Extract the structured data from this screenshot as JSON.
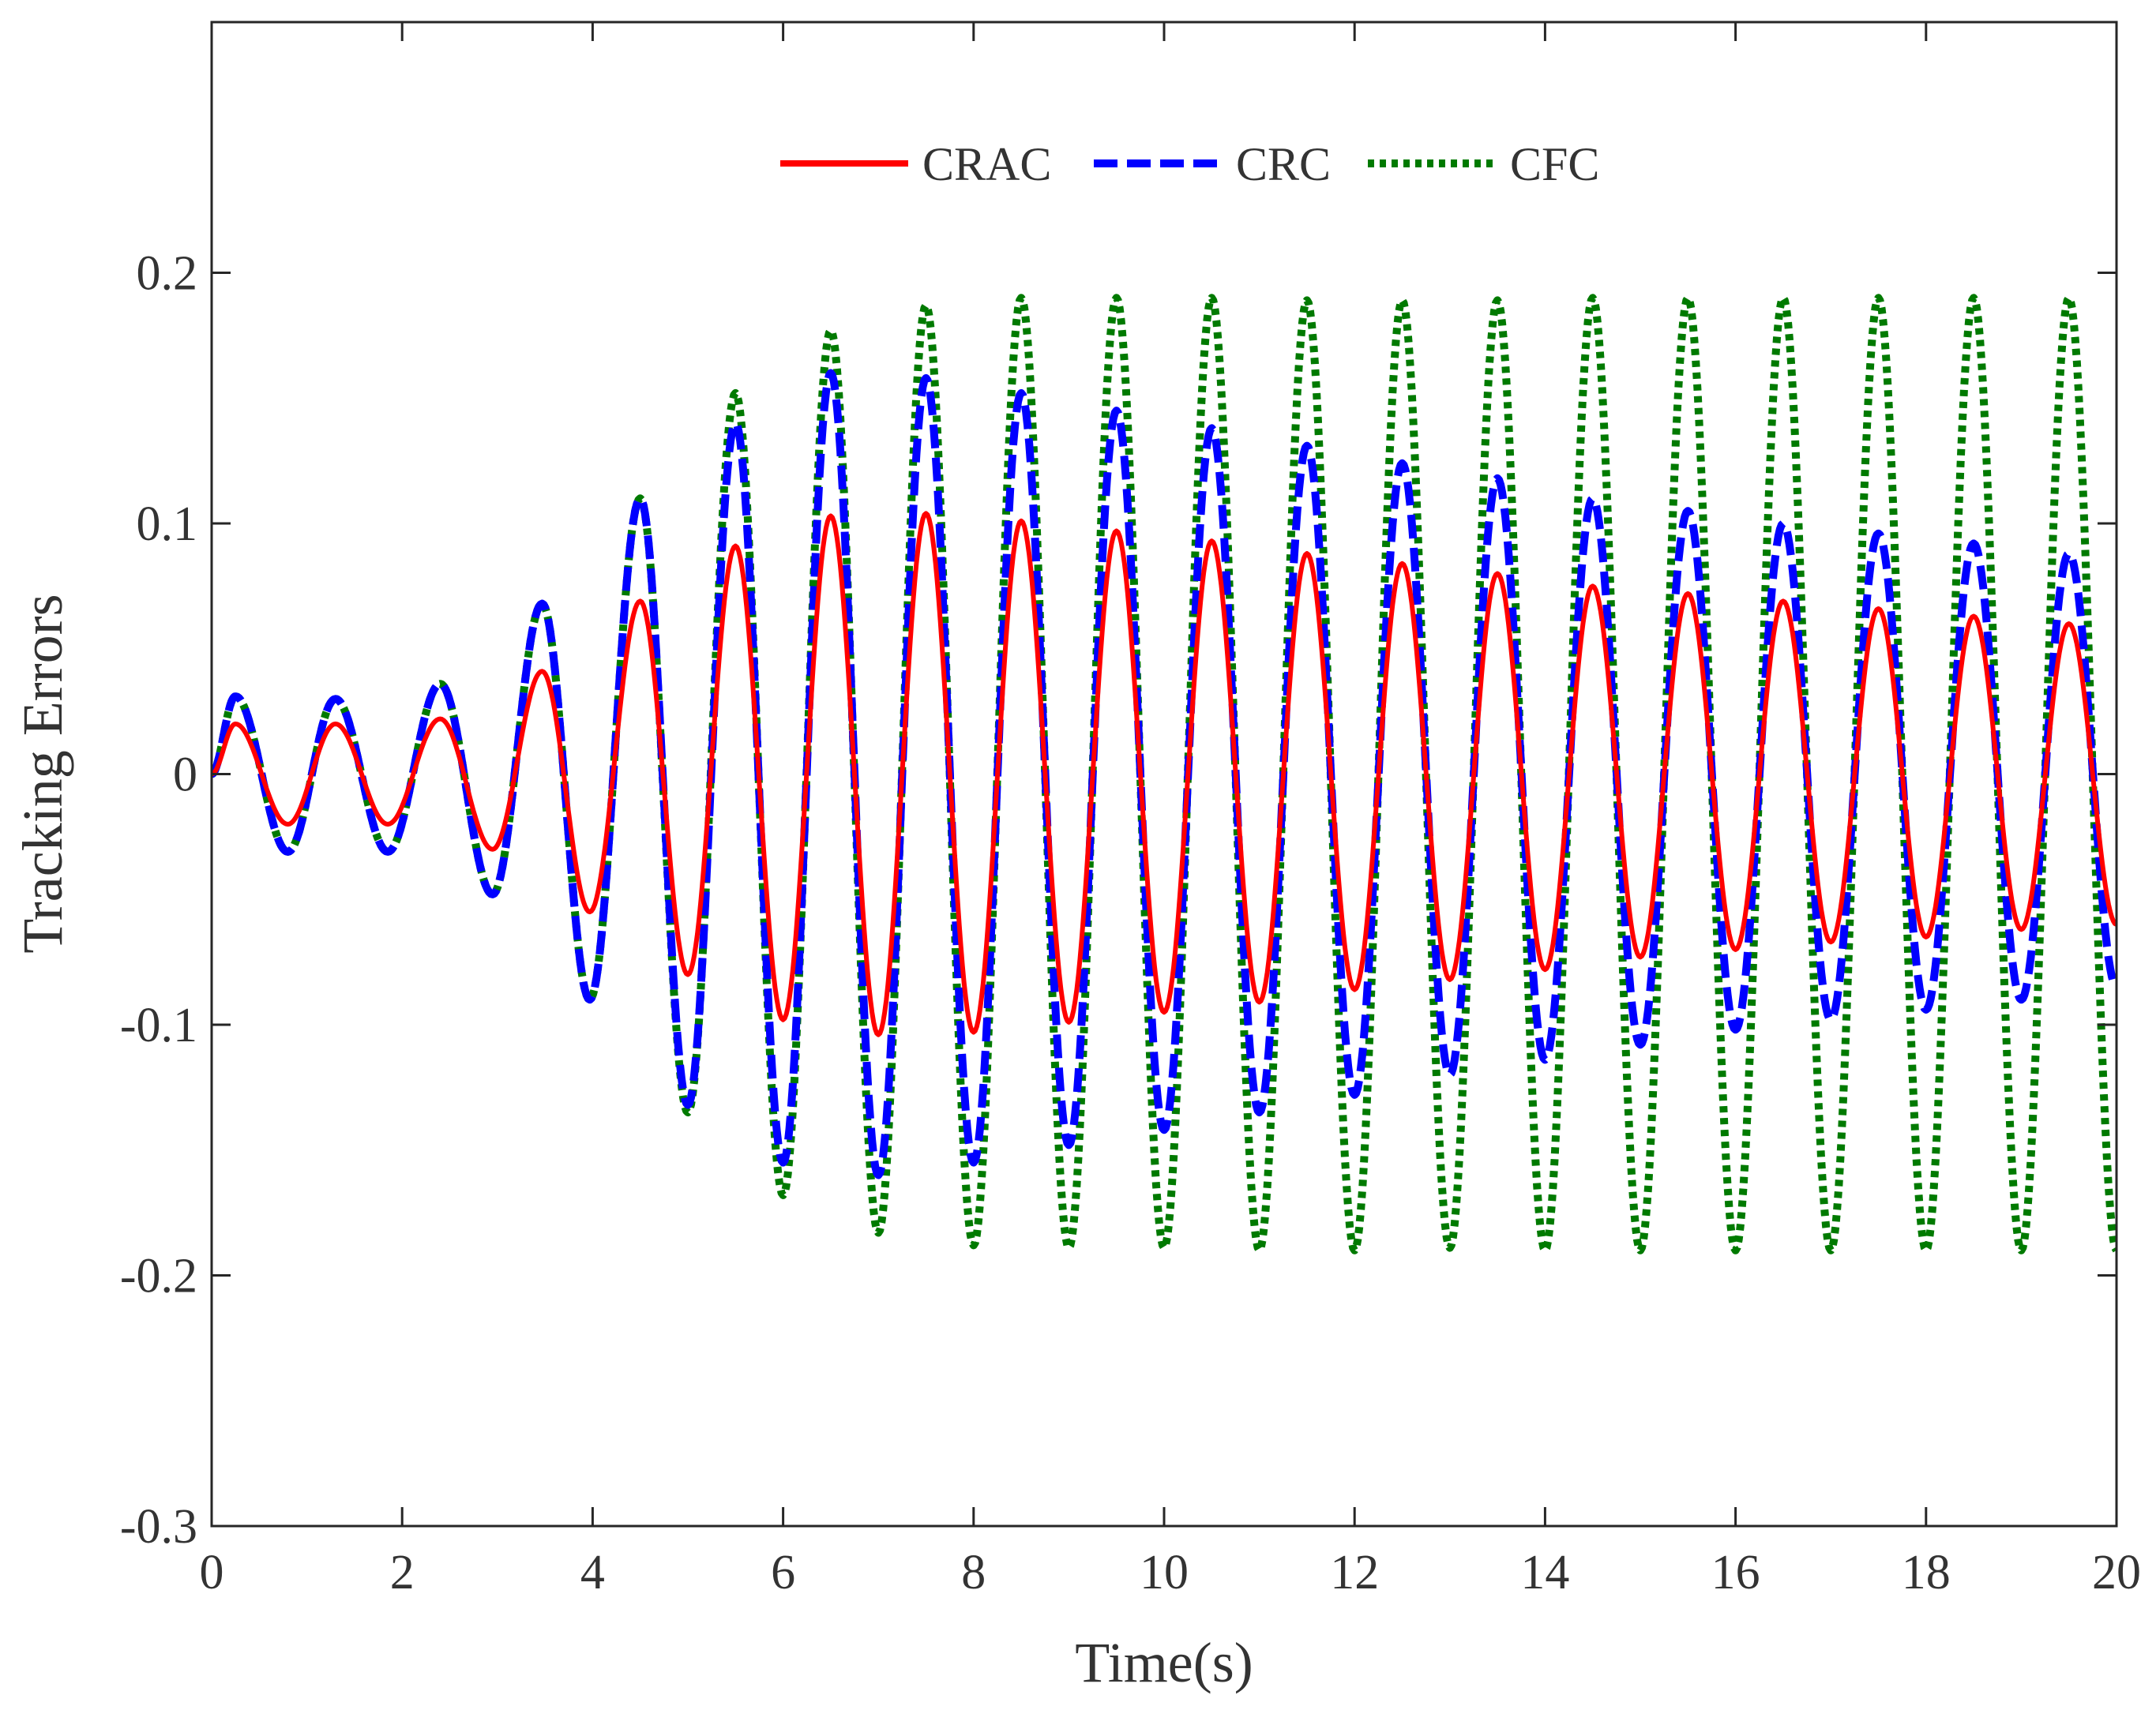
{
  "chart_data": {
    "type": "line",
    "title": "",
    "xlabel": "Time(s)",
    "ylabel": "Tracking Errors",
    "xlim": [
      0,
      20
    ],
    "ylim": [
      -0.3,
      0.3
    ],
    "grid": false,
    "legend_position": "top-center",
    "x_ticks": [
      0,
      2,
      4,
      6,
      8,
      10,
      12,
      14,
      16,
      18,
      20
    ],
    "x_tick_labels": [
      "0",
      "2",
      "4",
      "6",
      "8",
      "10",
      "12",
      "14",
      "16",
      "18",
      "20"
    ],
    "y_ticks": [
      -0.3,
      -0.2,
      -0.1,
      0,
      0.1,
      0.2
    ],
    "y_tick_labels": [
      "-0.3",
      "-0.2",
      "-0.1",
      "0",
      "0.1",
      "0.2"
    ],
    "series": [
      {
        "name": "CRAC",
        "color": "#ff0000",
        "style": "solid",
        "peak_times": [
          0.25,
          0.8,
          1.3,
          1.85,
          2.4,
          2.95,
          3.47,
          3.97,
          4.5,
          5.0,
          5.5,
          6.0,
          6.5,
          7.0,
          7.5,
          8.0,
          8.5,
          9.0,
          9.5,
          10.0,
          10.5,
          11.0,
          11.5,
          12.0,
          12.5,
          13.0,
          13.5,
          14.0,
          14.5,
          15.0,
          15.5,
          16.0,
          16.5,
          17.0,
          17.5,
          18.0,
          18.5,
          19.0,
          19.5,
          20.0
        ],
        "peak_values": [
          0.02,
          -0.02,
          0.02,
          -0.02,
          0.022,
          -0.03,
          0.041,
          -0.055,
          0.069,
          -0.08,
          0.091,
          -0.098,
          0.103,
          -0.104,
          0.104,
          -0.103,
          0.101,
          -0.099,
          0.097,
          -0.095,
          0.093,
          -0.091,
          0.088,
          -0.086,
          0.084,
          -0.082,
          0.08,
          -0.078,
          0.075,
          -0.073,
          0.072,
          -0.07,
          0.069,
          -0.067,
          0.066,
          -0.065,
          0.063,
          -0.062,
          0.06,
          -0.06
        ]
      },
      {
        "name": "CRC",
        "color": "#0000ff",
        "style": "dashed",
        "peak_times": [
          0.25,
          0.8,
          1.3,
          1.85,
          2.4,
          2.95,
          3.47,
          3.97,
          4.5,
          5.0,
          5.5,
          6.0,
          6.5,
          7.0,
          7.5,
          8.0,
          8.5,
          9.0,
          9.5,
          10.0,
          10.5,
          11.0,
          11.5,
          12.0,
          12.5,
          13.0,
          13.5,
          14.0,
          14.5,
          15.0,
          15.5,
          16.0,
          16.5,
          17.0,
          17.5,
          18.0,
          18.5,
          19.0,
          19.5,
          20.0
        ],
        "peak_values": [
          0.031,
          -0.031,
          0.03,
          -0.031,
          0.036,
          -0.048,
          0.068,
          -0.09,
          0.11,
          -0.132,
          0.14,
          -0.155,
          0.16,
          -0.16,
          0.158,
          -0.155,
          0.152,
          -0.148,
          0.145,
          -0.142,
          0.138,
          -0.135,
          0.131,
          -0.128,
          0.124,
          -0.12,
          0.118,
          -0.114,
          0.11,
          -0.108,
          0.105,
          -0.102,
          0.1,
          -0.098,
          0.096,
          -0.094,
          0.092,
          -0.09,
          0.088,
          -0.085
        ]
      },
      {
        "name": "CFC",
        "color": "#007a00",
        "style": "dotted",
        "peak_times": [
          0.25,
          0.8,
          1.3,
          1.85,
          2.4,
          2.95,
          3.47,
          3.97,
          4.5,
          5.0,
          5.5,
          6.0,
          6.5,
          7.0,
          7.5,
          8.0,
          8.5,
          9.0,
          9.5,
          10.0,
          10.5,
          11.0,
          11.5,
          12.0,
          12.5,
          13.0,
          13.5,
          14.0,
          14.5,
          15.0,
          15.5,
          16.0,
          16.5,
          17.0,
          17.5,
          18.0,
          18.5,
          19.0,
          19.5,
          20.0
        ],
        "peak_values": [
          0.031,
          -0.031,
          0.03,
          -0.031,
          0.036,
          -0.048,
          0.068,
          -0.09,
          0.11,
          -0.135,
          0.152,
          -0.168,
          0.177,
          -0.183,
          0.187,
          -0.188,
          0.19,
          -0.189,
          0.19,
          -0.189,
          0.19,
          -0.19,
          0.189,
          -0.19,
          0.189,
          -0.189,
          0.189,
          -0.19,
          0.19,
          -0.19,
          0.19,
          -0.19,
          0.19,
          -0.19,
          0.19,
          -0.19,
          0.19,
          -0.19,
          0.19,
          -0.19
        ]
      }
    ]
  }
}
